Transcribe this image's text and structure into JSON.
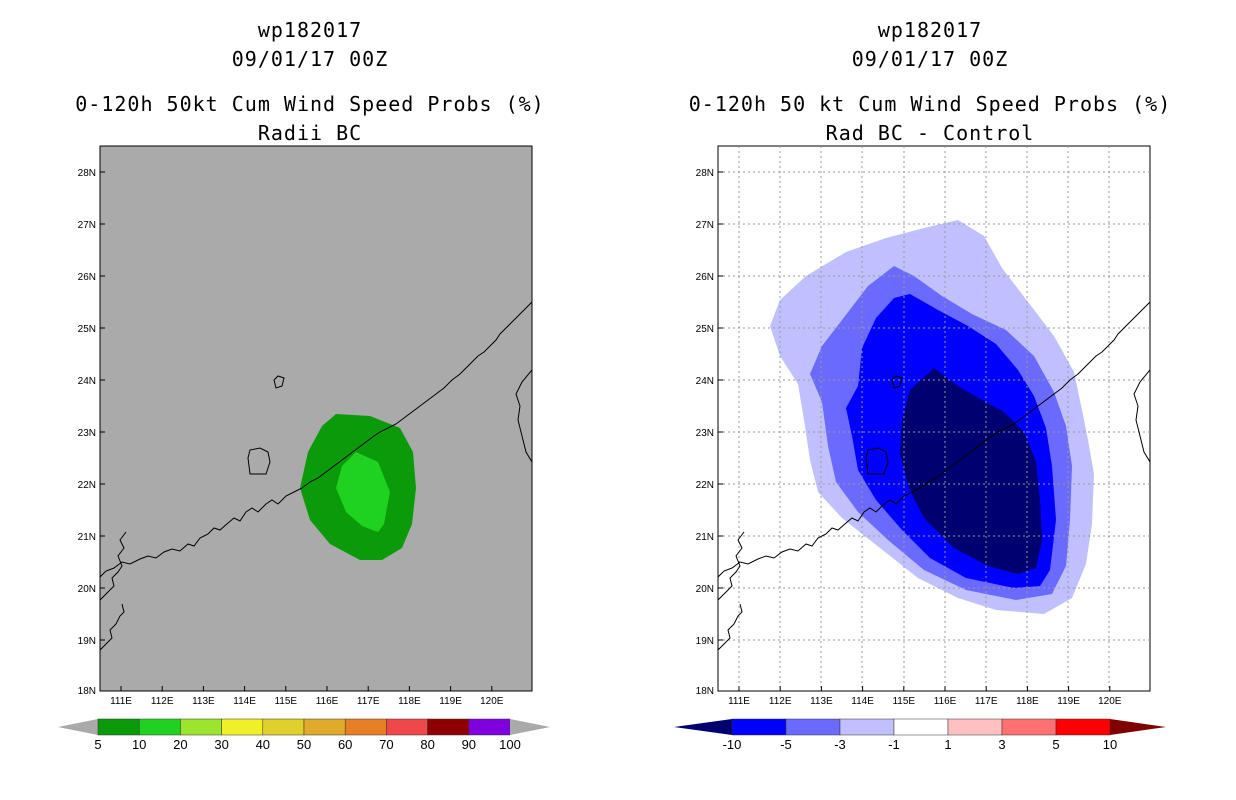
{
  "left_panel": {
    "title_line1": "wp182017",
    "title_line2": "09/01/17 00Z",
    "title_line3": "0-120h 50kt Cum Wind Speed Probs (%)",
    "title_line4": "Radii BC",
    "colorbar": {
      "labels": [
        "5",
        "10",
        "20",
        "30",
        "40",
        "50",
        "60",
        "70",
        "80",
        "90",
        "100"
      ],
      "colors": [
        "#0a9a0a",
        "#1fd21f",
        "#9be62d",
        "#f0f028",
        "#e0d02a",
        "#e0aa2a",
        "#e87f24",
        "#f04848",
        "#900000",
        "#8000e0"
      ]
    }
  },
  "right_panel": {
    "title_line1": "wp182017",
    "title_line2": "09/01/17 00Z",
    "title_line3": "0-120h 50 kt Cum Wind Speed Probs (%)",
    "title_line4": "Rad BC - Control",
    "colorbar": {
      "labels": [
        "-10",
        "-5",
        "-3",
        "-1",
        "1",
        "3",
        "5",
        "10"
      ],
      "colors": [
        "#000070",
        "#0000ff",
        "#6a6aff",
        "#c0c0ff",
        "#ffffff",
        "#ffc0c0",
        "#ff7070",
        "#ff0000",
        "#800000"
      ]
    }
  },
  "axes": {
    "lon_labels": [
      "111E",
      "112E",
      "113E",
      "114E",
      "115E",
      "116E",
      "117E",
      "118E",
      "119E",
      "120E"
    ],
    "lat_labels": [
      "28N",
      "27N",
      "26N",
      "25N",
      "24N",
      "23N",
      "22N",
      "21N",
      "20N",
      "19N",
      "18N"
    ]
  }
}
